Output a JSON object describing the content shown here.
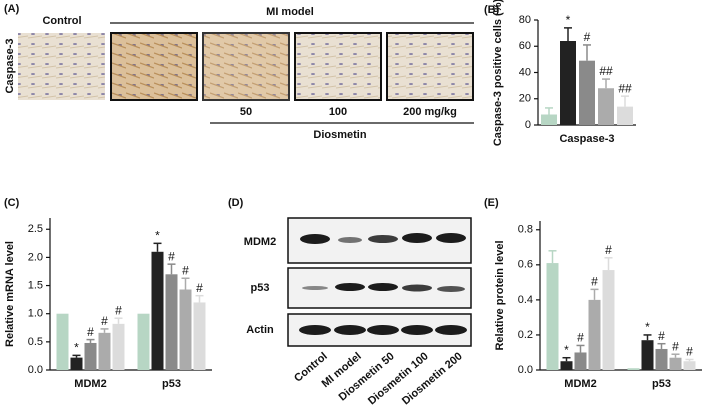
{
  "panel_a": {
    "label": "(A)",
    "row_label": "Caspase-3",
    "control": "Control",
    "model": "MI model",
    "doses": [
      "50",
      "100",
      "200 mg/kg"
    ],
    "drug": "Diosmetin"
  },
  "panel_d": {
    "label": "(D)",
    "rows": [
      "MDM2",
      "p53",
      "Actin"
    ],
    "lanes": [
      "Control",
      "MI model",
      "Diosmetin 50",
      "Diosmetin 100",
      "Diosmetin 200"
    ]
  },
  "chart_data": [
    {
      "type": "bar",
      "panel": "(B)",
      "y_label": "Caspase-3 positive cells (%)",
      "categories": [
        "Caspase-3"
      ],
      "ylim": [
        0,
        80
      ],
      "yticks": [
        0,
        20,
        40,
        60,
        80
      ],
      "series": [
        {
          "color": "#b7d6c4",
          "values": [
            8
          ],
          "errors": [
            5
          ],
          "markers": [
            null
          ]
        },
        {
          "color": "#222222",
          "values": [
            64
          ],
          "errors": [
            10
          ],
          "markers": [
            "*"
          ]
        },
        {
          "color": "#8a8a8a",
          "values": [
            49
          ],
          "errors": [
            12
          ],
          "markers": [
            "#"
          ]
        },
        {
          "color": "#ababab",
          "values": [
            28
          ],
          "errors": [
            7
          ],
          "markers": [
            "##"
          ]
        },
        {
          "color": "#dcdcdc",
          "values": [
            14
          ],
          "errors": [
            8
          ],
          "markers": [
            "##"
          ]
        }
      ]
    },
    {
      "type": "bar",
      "panel": "(C)",
      "y_label": "Relative mRNA level",
      "categories": [
        "MDM2",
        "p53"
      ],
      "ylim": [
        0,
        2.7
      ],
      "yticks": [
        {
          "value": 0,
          "label": "0.0"
        },
        0.5,
        {
          "value": 1,
          "label": "1.0"
        },
        1.5,
        {
          "value": 2,
          "label": "2.0"
        },
        2.5
      ],
      "series": [
        {
          "color": "#b7d6c4",
          "values": [
            1,
            1
          ],
          "errors": [
            null,
            null
          ],
          "markers": [
            null,
            null
          ]
        },
        {
          "color": "#222222",
          "values": [
            0.22,
            2.1
          ],
          "errors": [
            0.04,
            0.15
          ],
          "markers": [
            "*",
            "*"
          ]
        },
        {
          "color": "#8a8a8a",
          "values": [
            0.48,
            1.7
          ],
          "errors": [
            0.06,
            0.18
          ],
          "markers": [
            "#",
            "#"
          ]
        },
        {
          "color": "#ababab",
          "values": [
            0.66,
            1.43
          ],
          "errors": [
            0.07,
            0.2
          ],
          "markers": [
            "#",
            "#"
          ]
        },
        {
          "color": "#dcdcdc",
          "values": [
            0.82,
            1.2
          ],
          "errors": [
            0.1,
            0.12
          ],
          "markers": [
            "#",
            "#"
          ]
        }
      ]
    },
    {
      "type": "bar",
      "panel": "(E)",
      "y_label": "Relative protein level",
      "categories": [
        "MDM2",
        "p53"
      ],
      "ylim": [
        0,
        0.85
      ],
      "yticks": [
        {
          "value": 0,
          "label": "0.0"
        },
        0.2,
        0.4,
        0.6,
        {
          "value": 0.8,
          "label": "0.8"
        }
      ],
      "series": [
        {
          "color": "#b7d6c4",
          "values": [
            0.61,
            0.01
          ],
          "errors": [
            0.07,
            null
          ],
          "markers": [
            null,
            null
          ]
        },
        {
          "color": "#222222",
          "values": [
            0.05,
            0.17
          ],
          "errors": [
            0.02,
            0.03
          ],
          "markers": [
            "*",
            "*"
          ]
        },
        {
          "color": "#8a8a8a",
          "values": [
            0.1,
            0.12
          ],
          "errors": [
            0.04,
            0.03
          ],
          "markers": [
            "#",
            "#"
          ]
        },
        {
          "color": "#ababab",
          "values": [
            0.4,
            0.07
          ],
          "errors": [
            0.06,
            0.02
          ],
          "markers": [
            "#",
            "#"
          ]
        },
        {
          "color": "#dcdcdc",
          "values": [
            0.57,
            0.05
          ],
          "errors": [
            0.07,
            0.01
          ],
          "markers": [
            "#",
            "#"
          ]
        }
      ]
    }
  ]
}
